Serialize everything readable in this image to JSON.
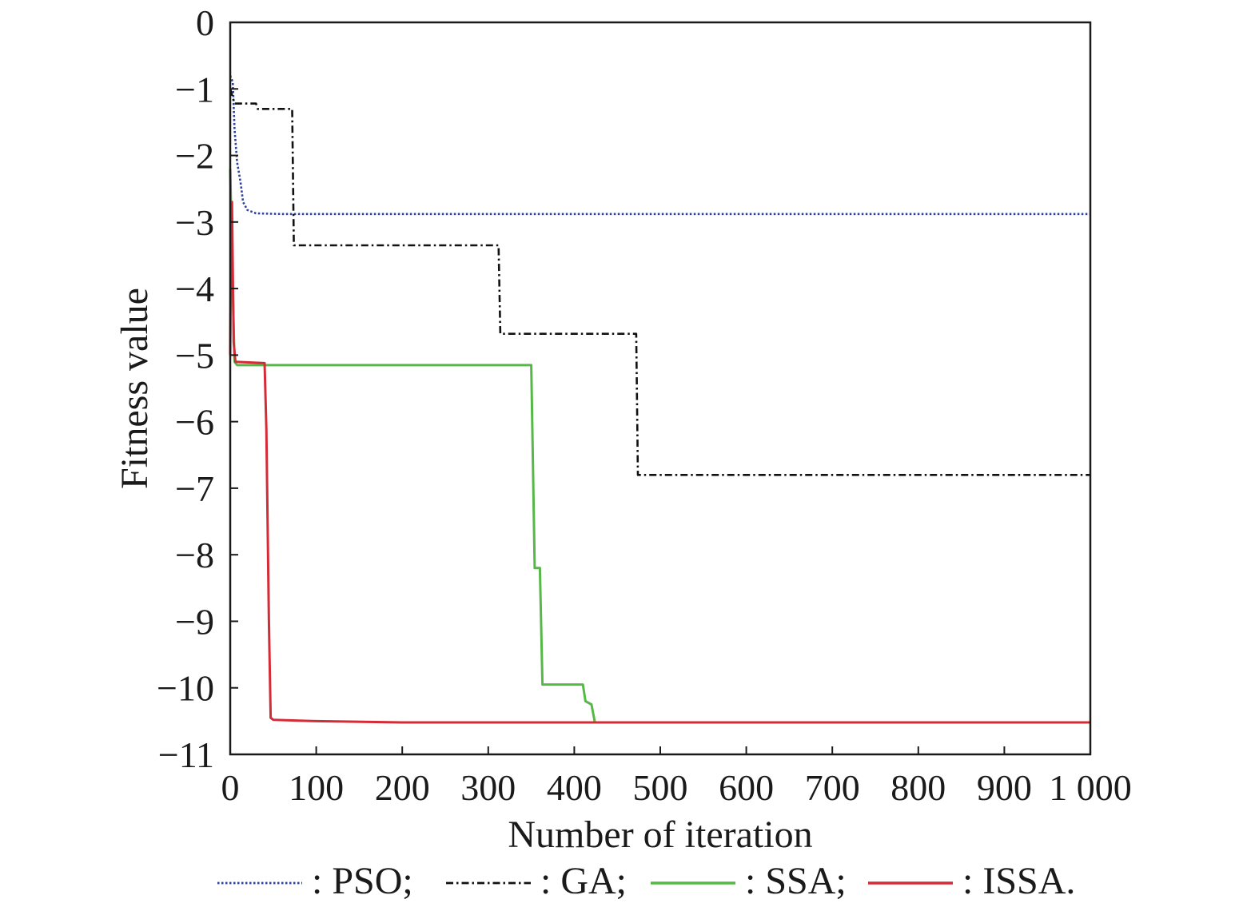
{
  "chart_data": {
    "type": "line",
    "title": "",
    "xlabel": "Number of iteration",
    "ylabel": "Fitness value",
    "xlim": [
      0,
      1000
    ],
    "ylim": [
      -11,
      0
    ],
    "xticks": [
      0,
      100,
      200,
      300,
      400,
      500,
      600,
      700,
      800,
      900,
      1000
    ],
    "xtick_labels": [
      "0",
      "100",
      "200",
      "300",
      "400",
      "500",
      "600",
      "700",
      "800",
      "900",
      "1 000"
    ],
    "yticks": [
      0,
      -1,
      -2,
      -3,
      -4,
      -5,
      -6,
      -7,
      -8,
      -9,
      -10,
      -11
    ],
    "ytick_labels": [
      "0",
      "−1",
      "−2",
      "−3",
      "−4",
      "−5",
      "−6",
      "−7",
      "−8",
      "−9",
      "−10",
      "−11"
    ],
    "grid": false,
    "legend_position": "bottom",
    "series": [
      {
        "name": "PSO",
        "legend_label": ": PSO;",
        "color": "#2b3f9e",
        "style": "dotted",
        "points": [
          [
            0,
            -0.8
          ],
          [
            3,
            -0.9
          ],
          [
            5,
            -1.6
          ],
          [
            8,
            -2.1
          ],
          [
            12,
            -2.4
          ],
          [
            15,
            -2.7
          ],
          [
            20,
            -2.82
          ],
          [
            30,
            -2.87
          ],
          [
            60,
            -2.88
          ],
          [
            1000,
            -2.88
          ]
        ]
      },
      {
        "name": "GA",
        "legend_label": ": GA;",
        "color": "#111111",
        "style": "dashdot",
        "points": [
          [
            0,
            -1.0
          ],
          [
            5,
            -1.22
          ],
          [
            30,
            -1.22
          ],
          [
            32,
            -1.3
          ],
          [
            72,
            -1.3
          ],
          [
            74,
            -3.35
          ],
          [
            312,
            -3.35
          ],
          [
            314,
            -4.68
          ],
          [
            472,
            -4.68
          ],
          [
            474,
            -6.8
          ],
          [
            1000,
            -6.8
          ]
        ]
      },
      {
        "name": "SSA",
        "legend_label": ": SSA;",
        "color": "#56b847",
        "style": "solid",
        "points": [
          [
            0,
            -2.2
          ],
          [
            3,
            -4.0
          ],
          [
            5,
            -5.1
          ],
          [
            8,
            -5.15
          ],
          [
            350,
            -5.15
          ],
          [
            354,
            -8.2
          ],
          [
            360,
            -8.2
          ],
          [
            363,
            -9.95
          ],
          [
            410,
            -9.95
          ],
          [
            413,
            -10.2
          ],
          [
            420,
            -10.25
          ],
          [
            424,
            -10.52
          ],
          [
            1000,
            -10.52
          ]
        ]
      },
      {
        "name": "ISSA",
        "legend_label": ": ISSA.",
        "color": "#d42c36",
        "style": "solid",
        "points": [
          [
            0,
            -5.0
          ],
          [
            1,
            -3.0
          ],
          [
            2,
            -2.7
          ],
          [
            4,
            -4.8
          ],
          [
            6,
            -5.1
          ],
          [
            40,
            -5.12
          ],
          [
            42,
            -6.1
          ],
          [
            45,
            -9.0
          ],
          [
            47,
            -10.45
          ],
          [
            50,
            -10.48
          ],
          [
            100,
            -10.5
          ],
          [
            200,
            -10.52
          ],
          [
            1000,
            -10.52
          ]
        ]
      }
    ]
  }
}
